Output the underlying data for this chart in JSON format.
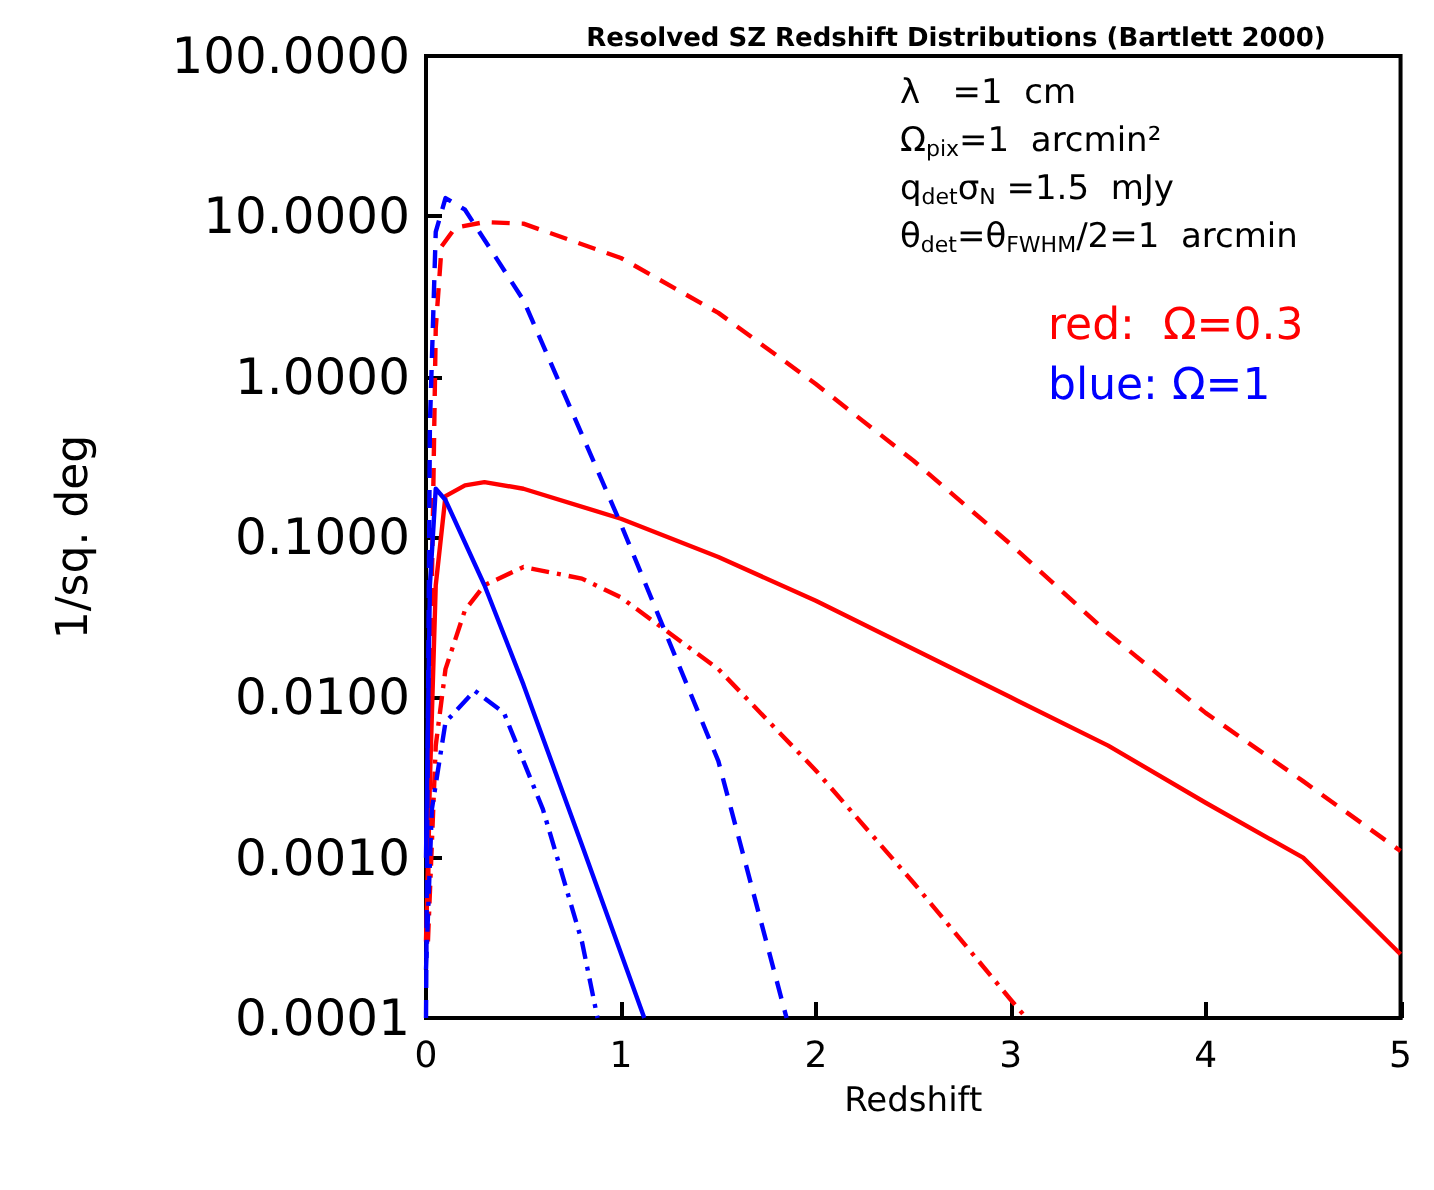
{
  "chart_data": {
    "type": "line",
    "title": "Resolved SZ Redshift Distributions (Bartlett 2000)",
    "xlabel": "Redshift",
    "ylabel": "1/sq. deg",
    "xlim": [
      0,
      5
    ],
    "xticks": [
      0,
      1,
      2,
      3,
      4,
      5
    ],
    "ylim": [
      0.0001,
      100
    ],
    "log": "y",
    "yticks": [
      {
        "value": 0.0001,
        "label": "0.0001"
      },
      {
        "value": 0.001,
        "label": "0.0010"
      },
      {
        "value": 0.01,
        "label": "0.0100"
      },
      {
        "value": 0.1,
        "label": "0.1000"
      },
      {
        "value": 1,
        "label": "1.0000"
      },
      {
        "value": 10,
        "label": "10.0000"
      },
      {
        "value": 100,
        "label": "100.0000"
      }
    ],
    "grid": false,
    "marker": "none",
    "series": [
      {
        "color": "#ff0000",
        "line_style": "dashed",
        "x": [
          0.01,
          0.03,
          0.05,
          0.08,
          0.15,
          0.3,
          0.5,
          1,
          1.5,
          2,
          2.5,
          3,
          3.5,
          4,
          4.5,
          5
        ],
        "values": [
          0.0005,
          0.05,
          2,
          6.5,
          8.5,
          9.2,
          9,
          5.5,
          2.5,
          0.9,
          0.3,
          0.09,
          0.025,
          0.008,
          0.003,
          0.0011
        ]
      },
      {
        "color": "#ff0000",
        "line_style": "solid",
        "x": [
          0,
          0.02,
          0.05,
          0.1,
          0.2,
          0.3,
          0.5,
          1,
          1.5,
          2,
          2.5,
          3,
          3.5,
          4,
          4.5,
          5
        ],
        "values": [
          0.0003,
          0.003,
          0.05,
          0.18,
          0.21,
          0.22,
          0.2,
          0.13,
          0.075,
          0.04,
          0.02,
          0.01,
          0.005,
          0.0022,
          0.001,
          0.00025
        ]
      },
      {
        "color": "#ff0000",
        "line_style": "dashdot",
        "x": [
          0.01,
          0.05,
          0.1,
          0.2,
          0.3,
          0.5,
          0.8,
          1,
          1.5,
          2,
          2.5,
          3,
          3.08
        ],
        "values": [
          0.0003,
          0.005,
          0.015,
          0.035,
          0.05,
          0.065,
          0.055,
          0.042,
          0.015,
          0.0035,
          0.0007,
          0.00013,
          0.0001
        ]
      },
      {
        "color": "#0000ff",
        "line_style": "dashed",
        "x": [
          0,
          0.02,
          0.05,
          0.1,
          0.2,
          0.5,
          1,
          1.5,
          1.85
        ],
        "values": [
          0.0001,
          0.5,
          8,
          13,
          11,
          3,
          0.12,
          0.004,
          0.0001
        ]
      },
      {
        "color": "#0000ff",
        "line_style": "solid",
        "x": [
          0,
          0.02,
          0.05,
          0.1,
          0.3,
          0.5,
          0.8,
          1.12
        ],
        "values": [
          0.001,
          0.05,
          0.2,
          0.17,
          0.05,
          0.012,
          0.0012,
          0.0001
        ]
      },
      {
        "color": "#0000ff",
        "line_style": "dashdot",
        "x": [
          0,
          0.03,
          0.1,
          0.25,
          0.4,
          0.6,
          0.8,
          0.88
        ],
        "values": [
          0.0002,
          0.002,
          0.007,
          0.011,
          0.008,
          0.002,
          0.0003,
          0.0001
        ]
      }
    ],
    "annotations": [
      "λ   =1  cm",
      "Ω$_{pix}$=1  arcmin²",
      "q$_{det}$σ$_{N}$ =1.5  mJy",
      "θ$_{det}$=θ$_{FWHM}$/2=1  arcmin",
      "red:  Ω=0.3",
      "blue: Ω=1"
    ]
  }
}
